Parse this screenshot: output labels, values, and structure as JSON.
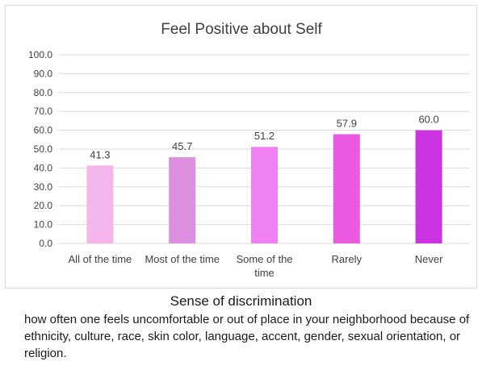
{
  "chart_data": {
    "type": "bar",
    "title": "Feel Positive about Self",
    "categories": [
      "All of the time",
      "Most of the time",
      "Some of the time",
      "Rarely",
      "Never"
    ],
    "category_lines": [
      [
        "All of the time"
      ],
      [
        "Most of the time"
      ],
      [
        "Some of the",
        "time"
      ],
      [
        "Rarely"
      ],
      [
        "Never"
      ]
    ],
    "values": [
      41.3,
      45.7,
      51.2,
      57.9,
      60.0
    ],
    "value_labels": [
      "41.3",
      "45.7",
      "51.2",
      "57.9",
      "60.0"
    ],
    "ylim": [
      0,
      100
    ],
    "yticks": [
      "0.0",
      "10.0",
      "20.0",
      "30.0",
      "40.0",
      "50.0",
      "60.0",
      "70.0",
      "80.0",
      "90.0",
      "100.0"
    ],
    "grid": true,
    "legend": "none",
    "bar_colors": [
      "#f4b6ea",
      "#dd8fe0",
      "#ef82f0",
      "#e95ae0",
      "#cc33e0"
    ],
    "gridline_color": "#d9d9d9"
  },
  "caption": {
    "title": "Sense of discrimination",
    "body": "how often one feels uncomfortable or out of place in your neighborhood because of ethnicity, culture, race, skin color, language, accent, gender, sexual orientation, or religion."
  }
}
